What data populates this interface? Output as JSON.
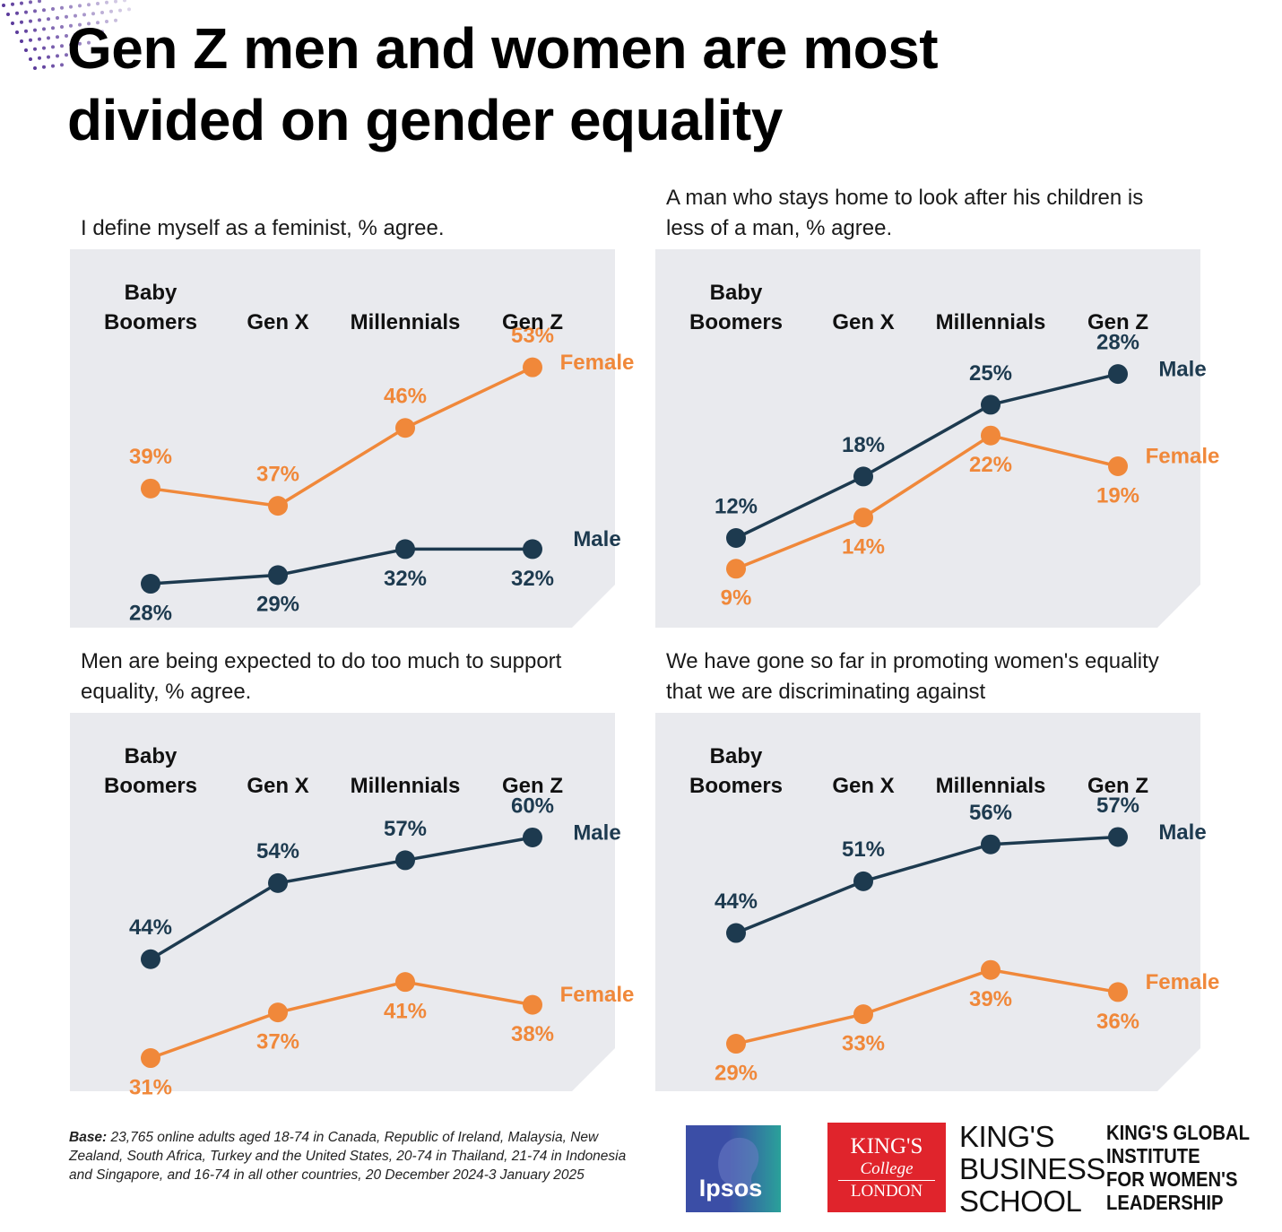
{
  "title": "Gen Z men and women are most divided on gender equality",
  "chart_data": [
    {
      "type": "line",
      "title": "I define myself as a feminist, % agree.",
      "categories": [
        "Baby Boomers",
        "Gen X",
        "Millennials",
        "Gen Z"
      ],
      "ylim": [
        25,
        54
      ],
      "series": [
        {
          "name": "Female",
          "color": "#f0883a",
          "values": [
            39,
            37,
            46,
            53
          ],
          "value_labels": [
            "39%",
            "37%",
            "46%",
            "53%"
          ]
        },
        {
          "name": "Male",
          "color": "#1d3a4f",
          "values": [
            28,
            29,
            32,
            32
          ],
          "value_labels": [
            "28%",
            "29%",
            "32%",
            "32%"
          ]
        }
      ]
    },
    {
      "type": "line",
      "title": "A man who stays home to look after his children is less of a man, % agree.",
      "categories": [
        "Baby Boomers",
        "Gen X",
        "Millennials",
        "Gen Z"
      ],
      "ylim": [
        5,
        29.5
      ],
      "series": [
        {
          "name": "Male",
          "color": "#1d3a4f",
          "values": [
            12,
            18,
            25,
            28
          ],
          "value_labels": [
            "12%",
            "18%",
            "25%",
            "28%"
          ]
        },
        {
          "name": "Female",
          "color": "#f0883a",
          "values": [
            9,
            14,
            22,
            19
          ],
          "value_labels": [
            "9%",
            "14%",
            "22%",
            "19%"
          ]
        }
      ]
    },
    {
      "type": "line",
      "title": "Men are being expected to do too much to support equality, % agree.",
      "categories": [
        "Baby Boomers",
        "Gen X",
        "Millennials",
        "Gen Z"
      ],
      "ylim": [
        29,
        62
      ],
      "series": [
        {
          "name": "Male",
          "color": "#1d3a4f",
          "values": [
            44,
            54,
            57,
            60
          ],
          "value_labels": [
            "44%",
            "54%",
            "57%",
            "60%"
          ]
        },
        {
          "name": "Female",
          "color": "#f0883a",
          "values": [
            31,
            37,
            41,
            38
          ],
          "value_labels": [
            "31%",
            "37%",
            "41%",
            "38%"
          ]
        }
      ]
    },
    {
      "type": "line",
      "title": "We have gone so far in promoting women's equality that we are discriminating against",
      "categories": [
        "Baby Boomers",
        "Gen X",
        "Millennials",
        "Gen Z"
      ],
      "ylim": [
        25,
        59
      ],
      "series": [
        {
          "name": "Male",
          "color": "#1d3a4f",
          "values": [
            44,
            51,
            56,
            57
          ],
          "value_labels": [
            "44%",
            "51%",
            "56%",
            "57%"
          ]
        },
        {
          "name": "Female",
          "color": "#f0883a",
          "values": [
            29,
            33,
            39,
            36
          ],
          "value_labels": [
            "29%",
            "33%",
            "39%",
            "36%"
          ]
        }
      ]
    }
  ],
  "footnote": {
    "label": "Base:",
    "text": "23,765 online adults aged 18-74 in Canada, Republic of Ireland, Malaysia, New Zealand, South Africa, Turkey and the United States, 20-74 in Thailand, 21-74 in Indonesia and Singapore, and 16-74 in all other countries, 20 December 2024-3 January 2025"
  },
  "logos": {
    "ipsos": "Ipsos",
    "kcl": [
      "KING'S",
      "College",
      "LONDON"
    ],
    "business_school": [
      "KING'S",
      "BUSINESS",
      "SCHOOL"
    ],
    "institute": [
      "KING'S GLOBAL",
      "INSTITUTE",
      "FOR WOMEN'S",
      "LEADERSHIP"
    ]
  }
}
